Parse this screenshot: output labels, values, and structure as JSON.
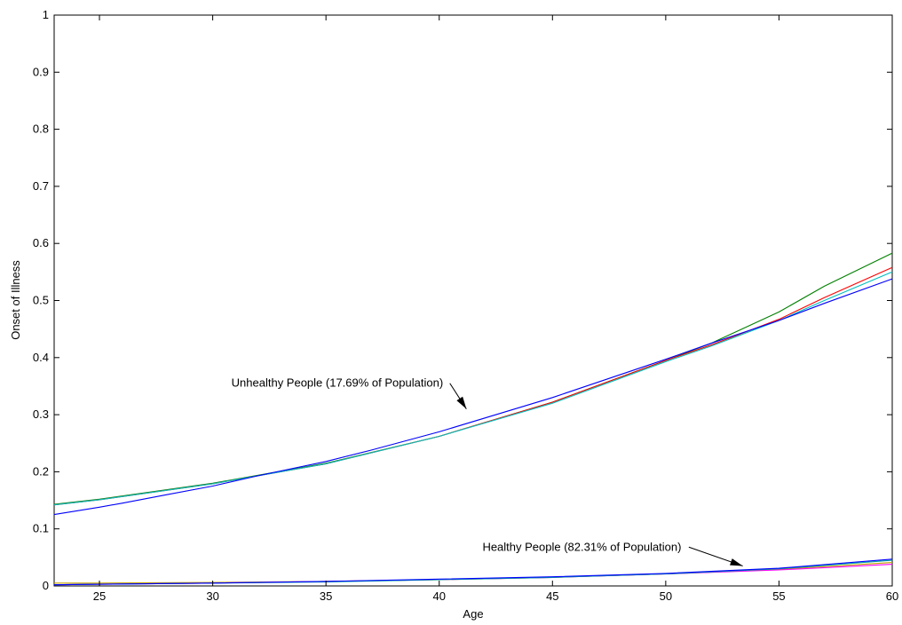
{
  "chart_data": {
    "type": "line",
    "title": "",
    "xlabel": "Age",
    "ylabel": "Onset of Illness",
    "xlim": [
      23,
      60
    ],
    "ylim": [
      0,
      1
    ],
    "xticks": [
      25,
      30,
      35,
      40,
      45,
      50,
      55,
      60
    ],
    "yticks": [
      0,
      0.1,
      0.2,
      0.3,
      0.4,
      0.5,
      0.6,
      0.7,
      0.8,
      0.9,
      1
    ],
    "grid": false,
    "series": [
      {
        "color": "#008000",
        "x": [
          23,
          25,
          30,
          35,
          40,
          45,
          50,
          52,
          55,
          57,
          60
        ],
        "y": [
          0.143,
          0.152,
          0.18,
          0.215,
          0.262,
          0.322,
          0.395,
          0.425,
          0.48,
          0.525,
          0.583
        ]
      },
      {
        "color": "#ff0000",
        "x": [
          23,
          25,
          30,
          35,
          40,
          45,
          50,
          52,
          55,
          57,
          60
        ],
        "y": [
          0.142,
          0.151,
          0.179,
          0.214,
          0.262,
          0.322,
          0.395,
          0.422,
          0.467,
          0.505,
          0.558
        ]
      },
      {
        "color": "#00bfbf",
        "x": [
          23,
          25,
          30,
          35,
          40,
          45,
          50,
          52,
          55,
          57,
          60
        ],
        "y": [
          0.142,
          0.151,
          0.179,
          0.214,
          0.262,
          0.32,
          0.393,
          0.42,
          0.465,
          0.5,
          0.55
        ]
      },
      {
        "color": "#0000ff",
        "x": [
          23,
          25,
          26,
          28,
          30,
          32,
          35,
          37,
          40,
          45,
          50,
          52,
          55,
          57,
          60
        ],
        "y": [
          0.125,
          0.138,
          0.145,
          0.16,
          0.175,
          0.193,
          0.218,
          0.238,
          0.27,
          0.33,
          0.397,
          0.425,
          0.465,
          0.495,
          0.538
        ]
      },
      {
        "color": "#c0a000",
        "x": [
          23,
          25,
          30,
          35,
          40,
          45,
          50,
          55,
          60
        ],
        "y": [
          0.005,
          0.005,
          0.006,
          0.008,
          0.011,
          0.015,
          0.021,
          0.029,
          0.041
        ]
      },
      {
        "color": "#ff00ff",
        "x": [
          23,
          25,
          30,
          35,
          40,
          45,
          50,
          55,
          60
        ],
        "y": [
          0.002,
          0.003,
          0.005,
          0.008,
          0.011,
          0.015,
          0.021,
          0.028,
          0.038
        ]
      },
      {
        "color": "#00a0a0",
        "x": [
          23,
          25,
          30,
          35,
          40,
          45,
          50,
          55,
          60
        ],
        "y": [
          0.002,
          0.003,
          0.005,
          0.007,
          0.011,
          0.015,
          0.021,
          0.03,
          0.045
        ]
      },
      {
        "color": "#0000ff",
        "x": [
          23,
          25,
          30,
          35,
          40,
          45,
          50,
          55,
          60
        ],
        "y": [
          0.002,
          0.003,
          0.005,
          0.008,
          0.012,
          0.016,
          0.022,
          0.031,
          0.047
        ]
      }
    ],
    "annotations": [
      {
        "text": "Unhealthy People (17.69% of Population)",
        "text_x": 35.5,
        "text_y": 0.355,
        "arrow_to": [
          41.2,
          0.31
        ]
      },
      {
        "text": "Healthy People (82.31% of Population)",
        "text_x": 46.3,
        "text_y": 0.068,
        "arrow_to": [
          53.4,
          0.035
        ]
      }
    ]
  }
}
